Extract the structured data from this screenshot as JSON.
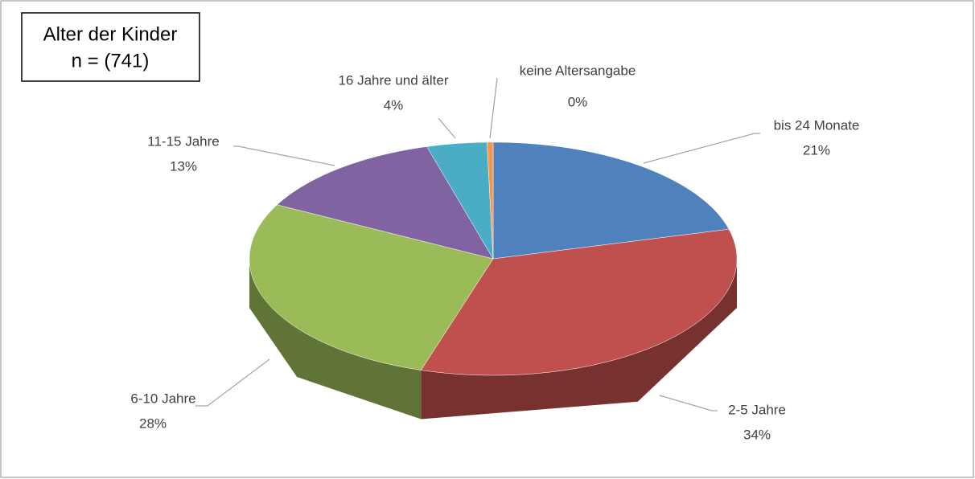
{
  "chart_data": {
    "type": "pie",
    "title": "Alter der Kinder",
    "subtitle": "n = (741)",
    "categories": [
      "bis 24 Monate",
      "2-5 Jahre",
      "6-10 Jahre",
      "11-15 Jahre",
      "16 Jahre und älter",
      "keine Altersangabe"
    ],
    "values": [
      21,
      34,
      28,
      13,
      4,
      0.4
    ],
    "value_labels": [
      "21%",
      "34%",
      "28%",
      "13%",
      "4%",
      "0%"
    ],
    "colors": [
      "#4f81bd",
      "#c0504d",
      "#9bbb59",
      "#8064a2",
      "#4bacc6",
      "#f79646"
    ]
  }
}
